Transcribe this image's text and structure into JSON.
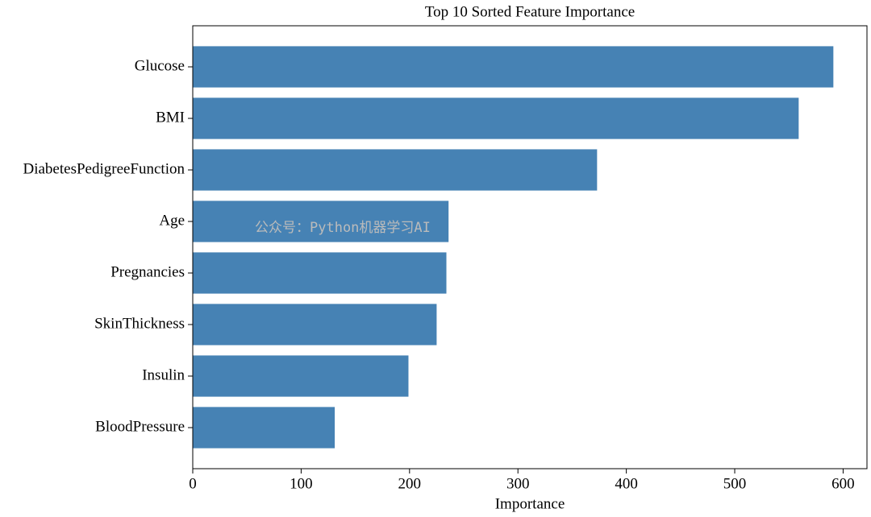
{
  "chart_data": {
    "type": "barh",
    "title": "Top 10 Sorted Feature Importance",
    "x_label": "Importance",
    "categories": [
      "Glucose",
      "BMI",
      "DiabetesPedigreeFunction",
      "Age",
      "Pregnancies",
      "SkinThickness",
      "Insulin",
      "BloodPressure"
    ],
    "values": [
      591,
      559,
      373,
      236,
      234,
      225,
      199,
      131
    ],
    "color": "#4682b4",
    "xlim": [
      0,
      622
    ],
    "xticks": [
      0,
      100,
      200,
      300,
      400,
      500,
      600
    ],
    "watermark": "公众号：Python机器学习AI"
  }
}
